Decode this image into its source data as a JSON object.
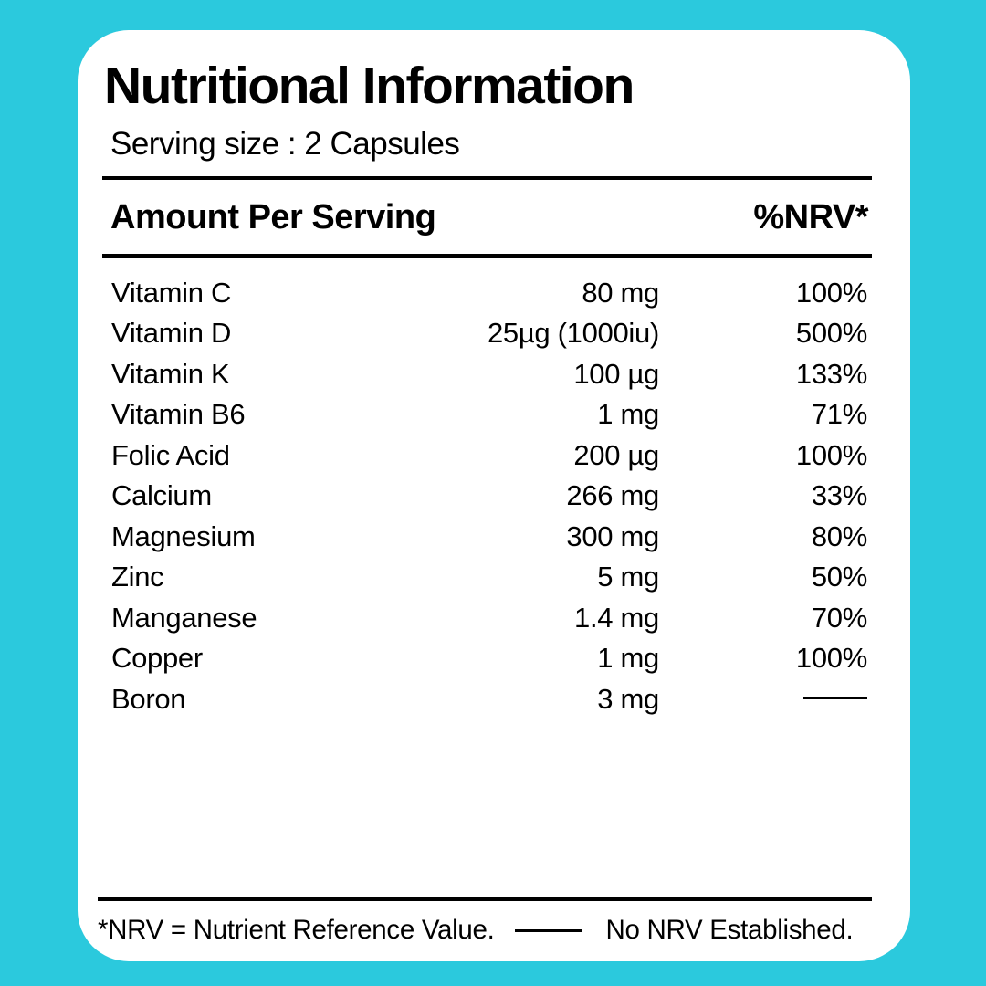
{
  "page": {
    "background_color": "#2BC9DD",
    "card_color": "#FFFFFF",
    "text_color": "#000000"
  },
  "header": {
    "title": "Nutritional Information",
    "serving_size": "Serving size : 2 Capsules"
  },
  "table": {
    "amount_header": "Amount Per Serving",
    "nrv_header": "%NRV*",
    "rows": [
      {
        "name": "Vitamin C",
        "amount": "80 mg",
        "nrv": "100%",
        "no_nrv": false
      },
      {
        "name": "Vitamin D",
        "amount": "25µg (1000iu)",
        "nrv": "500%",
        "no_nrv": false
      },
      {
        "name": "Vitamin K",
        "amount": "100 µg",
        "nrv": "133%",
        "no_nrv": false
      },
      {
        "name": "Vitamin B6",
        "amount": "1 mg",
        "nrv": "71%",
        "no_nrv": false
      },
      {
        "name": "Folic Acid",
        "amount": "200 µg",
        "nrv": "100%",
        "no_nrv": false
      },
      {
        "name": "Calcium",
        "amount": "266 mg",
        "nrv": "33%",
        "no_nrv": false
      },
      {
        "name": "Magnesium",
        "amount": "300 mg",
        "nrv": "80%",
        "no_nrv": false
      },
      {
        "name": "Zinc",
        "amount": "5 mg",
        "nrv": "50%",
        "no_nrv": false
      },
      {
        "name": "Manganese",
        "amount": "1.4 mg",
        "nrv": "70%",
        "no_nrv": false
      },
      {
        "name": "Copper",
        "amount": "1 mg",
        "nrv": "100%",
        "no_nrv": false
      },
      {
        "name": "Boron",
        "amount": "3 mg",
        "nrv": "",
        "no_nrv": true
      }
    ]
  },
  "footer": {
    "note_left": "*NRV = Nutrient Reference Value.",
    "note_right": "No NRV Established."
  }
}
